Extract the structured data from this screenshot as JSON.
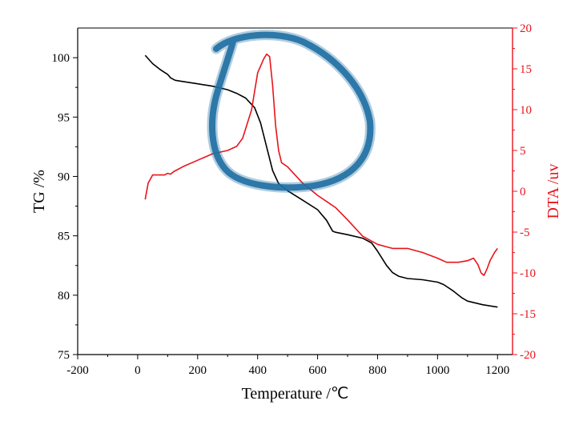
{
  "chart_data": {
    "type": "line",
    "title": "",
    "xlabel": "Temperature /℃",
    "ylabel_left": "TG /%",
    "ylabel_right": "DTA /uv",
    "xlim": [
      -200,
      1250
    ],
    "ylim_left": [
      75,
      102.5
    ],
    "ylim_right": [
      -20,
      20
    ],
    "x_ticks": [
      -200,
      0,
      200,
      400,
      600,
      800,
      1000,
      1200
    ],
    "y_left_ticks": [
      75,
      80,
      85,
      90,
      95,
      100
    ],
    "y_right_ticks": [
      -20,
      -15,
      -10,
      -5,
      0,
      5,
      10,
      15,
      20
    ],
    "grid": false,
    "legend": "none",
    "colors": {
      "tg": "#000000",
      "dta": "#e8141b",
      "right_axis": "#e8141b",
      "annotation": "#1f6fa3"
    },
    "series": [
      {
        "axis": "left",
        "color": "#000000",
        "x": [
          25,
          50,
          75,
          100,
          110,
          125,
          150,
          200,
          250,
          300,
          330,
          360,
          390,
          410,
          430,
          450,
          470,
          480,
          500,
          550,
          600,
          630,
          650,
          660,
          680,
          700,
          750,
          780,
          800,
          830,
          850,
          870,
          900,
          950,
          1000,
          1020,
          1050,
          1080,
          1100,
          1150,
          1200
        ],
        "y": [
          100.2,
          99.5,
          99.0,
          98.6,
          98.3,
          98.1,
          98.0,
          97.8,
          97.6,
          97.3,
          97.0,
          96.6,
          95.8,
          94.5,
          92.5,
          90.5,
          89.4,
          89.2,
          88.8,
          88.0,
          87.2,
          86.3,
          85.4,
          85.3,
          85.2,
          85.1,
          84.8,
          84.4,
          83.7,
          82.5,
          81.9,
          81.6,
          81.4,
          81.3,
          81.1,
          80.9,
          80.4,
          79.8,
          79.5,
          79.2,
          79.0
        ]
      },
      {
        "axis": "right",
        "color": "#e8141b",
        "x": [
          25,
          35,
          50,
          70,
          90,
          100,
          110,
          120,
          150,
          200,
          250,
          300,
          330,
          350,
          380,
          400,
          420,
          430,
          440,
          450,
          460,
          470,
          480,
          500,
          550,
          600,
          640,
          660,
          700,
          750,
          800,
          830,
          850,
          900,
          950,
          1000,
          1030,
          1050,
          1070,
          1100,
          1120,
          1135,
          1145,
          1155,
          1165,
          1175,
          1190,
          1200
        ],
        "y": [
          -1.0,
          1.0,
          2.0,
          2.0,
          2.0,
          2.2,
          2.1,
          2.4,
          3.0,
          3.8,
          4.6,
          5.0,
          5.5,
          6.5,
          10.0,
          14.5,
          16.2,
          16.8,
          16.5,
          13.0,
          8.0,
          5.0,
          3.5,
          3.0,
          1.0,
          -0.5,
          -1.5,
          -2.0,
          -3.5,
          -5.5,
          -6.5,
          -6.8,
          -7.0,
          -7.0,
          -7.5,
          -8.2,
          -8.7,
          -8.7,
          -8.7,
          -8.5,
          -8.2,
          -9.0,
          -10.0,
          -10.3,
          -9.5,
          -8.5,
          -7.5,
          -7.0
        ]
      }
    ],
    "annotation": {
      "type": "hand-drawn circle",
      "color": "#1f6fa3"
    }
  }
}
